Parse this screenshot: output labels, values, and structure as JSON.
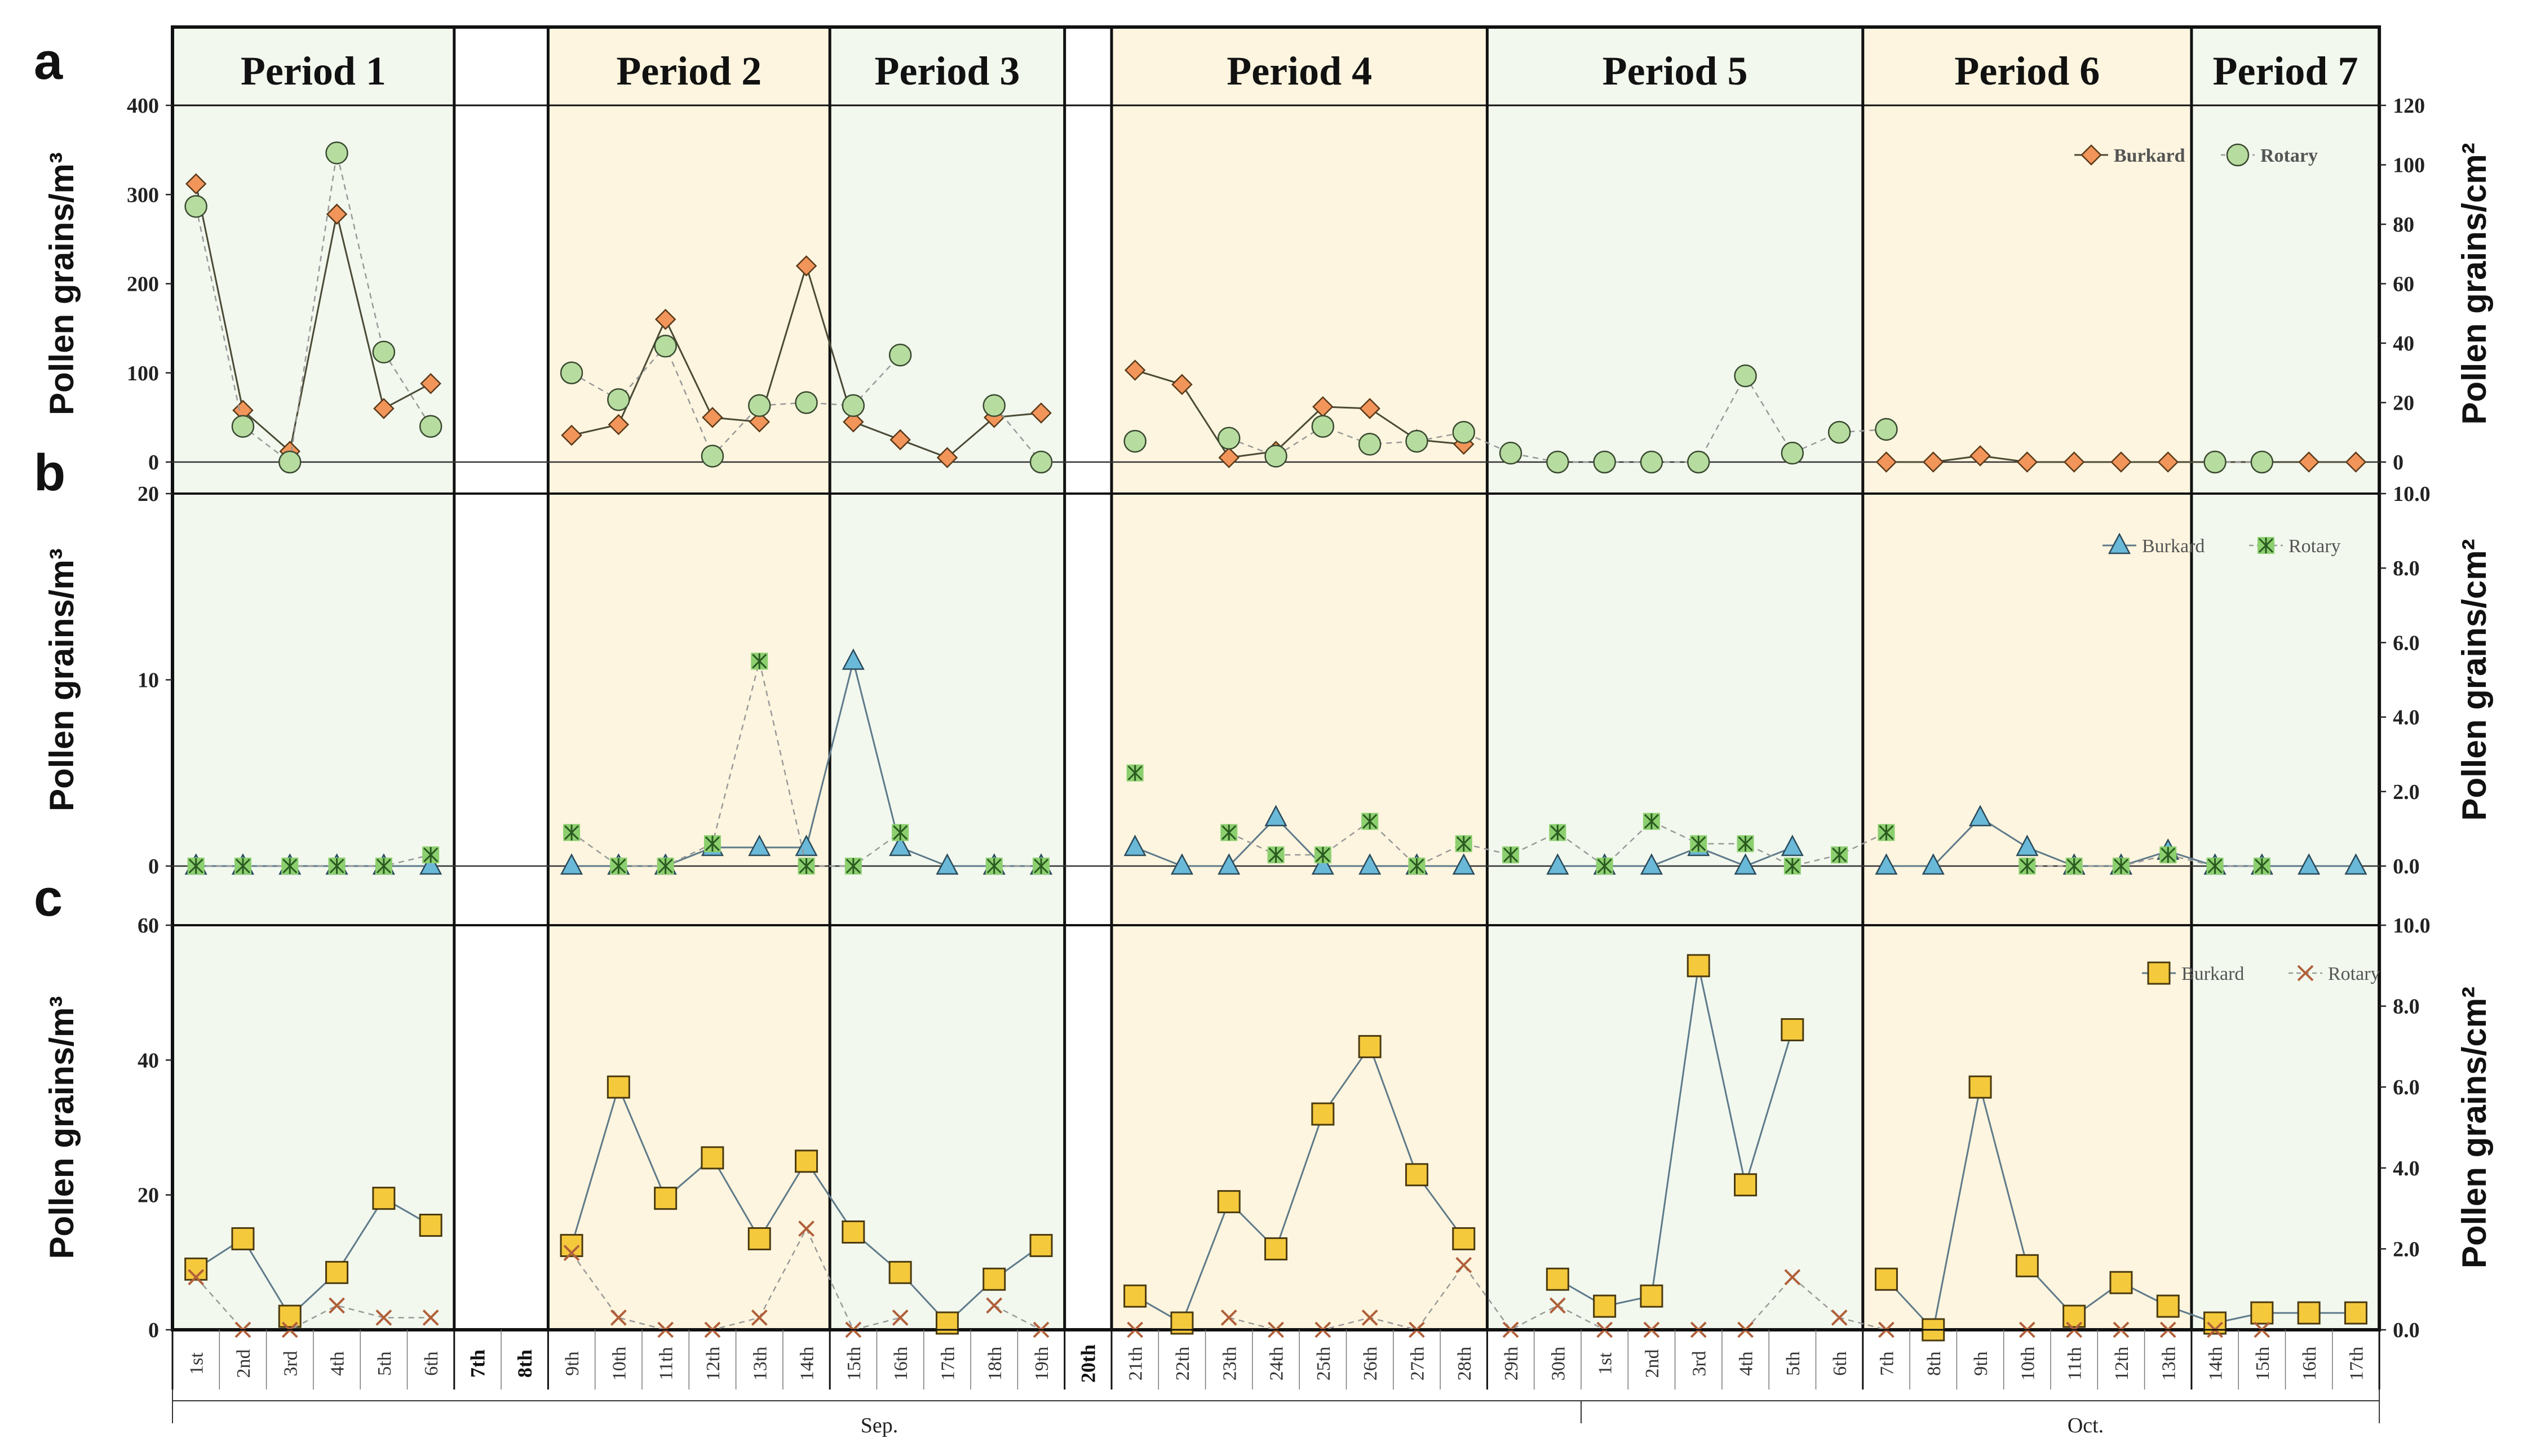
{
  "colors": {
    "green_bg": "#f2f8ee",
    "yellow_bg": "#fdf5df",
    "white_bg": "#ffffff",
    "frame": "#111111",
    "burkard_a": "#f2955a",
    "rotary_a": "#b7dca0",
    "burkard_b": "#6ab9d8",
    "rotary_b": "#8ccf6f",
    "burkard_c": "#f5c93c",
    "rotary_c": "#e8a07a",
    "line_burkard": "#4a4a35",
    "line_c": "#5f7a8a",
    "rotary_line": "#999999"
  },
  "panel_letters": [
    "a",
    "b",
    "c"
  ],
  "dates": [
    "1st",
    "2nd",
    "3rd",
    "4th",
    "5th",
    "6th",
    "7th",
    "8th",
    "9th",
    "10th",
    "11th",
    "12th",
    "13th",
    "14th",
    "15th",
    "16th",
    "17th",
    "18th",
    "19th",
    "20th",
    "21th",
    "22th",
    "23th",
    "24th",
    "25th",
    "26th",
    "27th",
    "28th",
    "29th",
    "30th",
    "1st",
    "2nd",
    "3rd",
    "4th",
    "5th",
    "6th",
    "7th",
    "8th",
    "9th",
    "10th",
    "11th",
    "12th",
    "13th",
    "14th",
    "15th",
    "16th",
    "17th"
  ],
  "bold_dates": [
    "7th",
    "8th",
    "20th"
  ],
  "months": [
    "Sep.",
    "Oct."
  ],
  "periods": [
    {
      "label": "Period 1",
      "shade": "green"
    },
    {
      "label": "",
      "shade": "white"
    },
    {
      "label": "Period 2",
      "shade": "yellow"
    },
    {
      "label": "Period 3",
      "shade": "green"
    },
    {
      "label": "",
      "shade": "white"
    },
    {
      "label": "Period 4",
      "shade": "yellow"
    },
    {
      "label": "Period 5",
      "shade": "green"
    },
    {
      "label": "Period 6",
      "shade": "yellow"
    },
    {
      "label": "Period 7",
      "shade": "green"
    }
  ],
  "chart_data": [
    {
      "type": "line",
      "panel": "a",
      "ylabel_left": "Pollen grains/m³",
      "ylabel_right": "Pollen grains/cm²",
      "ylim_left": [
        0,
        400
      ],
      "yticks_left": [
        "0",
        "100",
        "200",
        "300",
        "400"
      ],
      "ylim_right": [
        0,
        120
      ],
      "yticks_right": [
        "0",
        "20",
        "40",
        "60",
        "80",
        "100",
        "120"
      ],
      "legend": [
        "Burkard",
        "Rotary"
      ],
      "series": [
        {
          "name": "Burkard",
          "axis": "left",
          "marker": "diamond",
          "values": [
            312,
            58,
            12,
            278,
            60,
            88,
            null,
            null,
            30,
            42,
            160,
            50,
            45,
            220,
            45,
            25,
            5,
            50,
            55,
            null,
            103,
            87,
            5,
            12,
            62,
            60,
            25,
            20,
            null,
            null,
            null,
            null,
            null,
            null,
            null,
            null,
            0,
            0,
            7,
            0,
            0,
            0,
            0,
            0,
            0,
            0,
            0
          ]
        },
        {
          "name": "Rotary",
          "axis": "right",
          "marker": "circle",
          "values": [
            86,
            12,
            0,
            104,
            37,
            12,
            null,
            null,
            30,
            21,
            39,
            2,
            19,
            20,
            19,
            36,
            null,
            19,
            0,
            null,
            7,
            null,
            8,
            2,
            12,
            6,
            7,
            10,
            3,
            0,
            0,
            0,
            0,
            29,
            3,
            10,
            11,
            null,
            null,
            null,
            null,
            null,
            null,
            0,
            0,
            null,
            null
          ]
        }
      ]
    },
    {
      "type": "line",
      "panel": "b",
      "ylabel_left": "Pollen grains/m³",
      "ylabel_right": "Pollen grains/cm²",
      "ylim_left": [
        0,
        20
      ],
      "yticks_left": [
        "0",
        "10",
        "20"
      ],
      "ylim_right": [
        0,
        10
      ],
      "yticks_right": [
        "0.0",
        "2.0",
        "4.0",
        "6.0",
        "8.0",
        "10.0"
      ],
      "legend": [
        "Burkard",
        "Rotary"
      ],
      "series": [
        {
          "name": "Burkard",
          "axis": "left",
          "marker": "triangle",
          "values": [
            0,
            0,
            0,
            0,
            0,
            0,
            null,
            null,
            0,
            0,
            0,
            1,
            1,
            1,
            11,
            1,
            0,
            0,
            0,
            null,
            1,
            0,
            0,
            2.6,
            0,
            0,
            0,
            0,
            null,
            0,
            0,
            0,
            1,
            0,
            1,
            null,
            0,
            0,
            2.6,
            1,
            0,
            0,
            0.8,
            0,
            0,
            0,
            0
          ]
        },
        {
          "name": "Rotary",
          "axis": "right",
          "marker": "asterisk",
          "values": [
            0,
            0,
            0,
            0,
            0,
            0.3,
            null,
            null,
            0.9,
            0,
            0,
            0.6,
            5.5,
            0,
            0,
            0.9,
            null,
            0,
            0,
            null,
            2.5,
            null,
            0.9,
            0.3,
            0.3,
            1.2,
            0,
            0.6,
            0.3,
            0.9,
            0,
            1.2,
            0.6,
            0.6,
            0,
            0.3,
            0.9,
            null,
            null,
            0,
            0,
            0,
            0.3,
            0,
            0,
            null,
            null
          ]
        }
      ]
    },
    {
      "type": "line",
      "panel": "c",
      "ylabel_left": "Pollen grains/m³",
      "ylabel_right": "Pollen grains/cm²",
      "ylim_left": [
        0,
        60
      ],
      "yticks_left": [
        "0",
        "20",
        "40",
        "60"
      ],
      "ylim_right": [
        0,
        10
      ],
      "yticks_right": [
        "0.0",
        "2.0",
        "4.0",
        "6.0",
        "8.0",
        "10.0"
      ],
      "legend": [
        "Burkard",
        "Rotary"
      ],
      "series": [
        {
          "name": "Burkard",
          "axis": "left",
          "marker": "square",
          "values": [
            9,
            13.5,
            2,
            8.5,
            19.5,
            15.5,
            null,
            null,
            12.5,
            36,
            19.5,
            25.5,
            13.5,
            25,
            14.5,
            8.5,
            1,
            7.5,
            12.5,
            null,
            5,
            1,
            19,
            12,
            32,
            42,
            23,
            13.5,
            null,
            7.5,
            3.5,
            5,
            54,
            21.5,
            44.5,
            null,
            7.5,
            0,
            36,
            9.5,
            2,
            7,
            3.5,
            1,
            2.5,
            2.5,
            2.5
          ]
        },
        {
          "name": "Rotary",
          "axis": "right",
          "marker": "x",
          "values": [
            1.3,
            0,
            0,
            0.6,
            0.3,
            0.3,
            null,
            null,
            1.9,
            0.3,
            0,
            0,
            0.3,
            2.5,
            0,
            0.3,
            null,
            0.6,
            0,
            null,
            0,
            null,
            0.3,
            0,
            0,
            0.3,
            0,
            1.6,
            0,
            0.6,
            0,
            0,
            0,
            0,
            1.3,
            0.3,
            0,
            null,
            null,
            0,
            0,
            0,
            0,
            0,
            0,
            null,
            null
          ]
        }
      ]
    }
  ]
}
